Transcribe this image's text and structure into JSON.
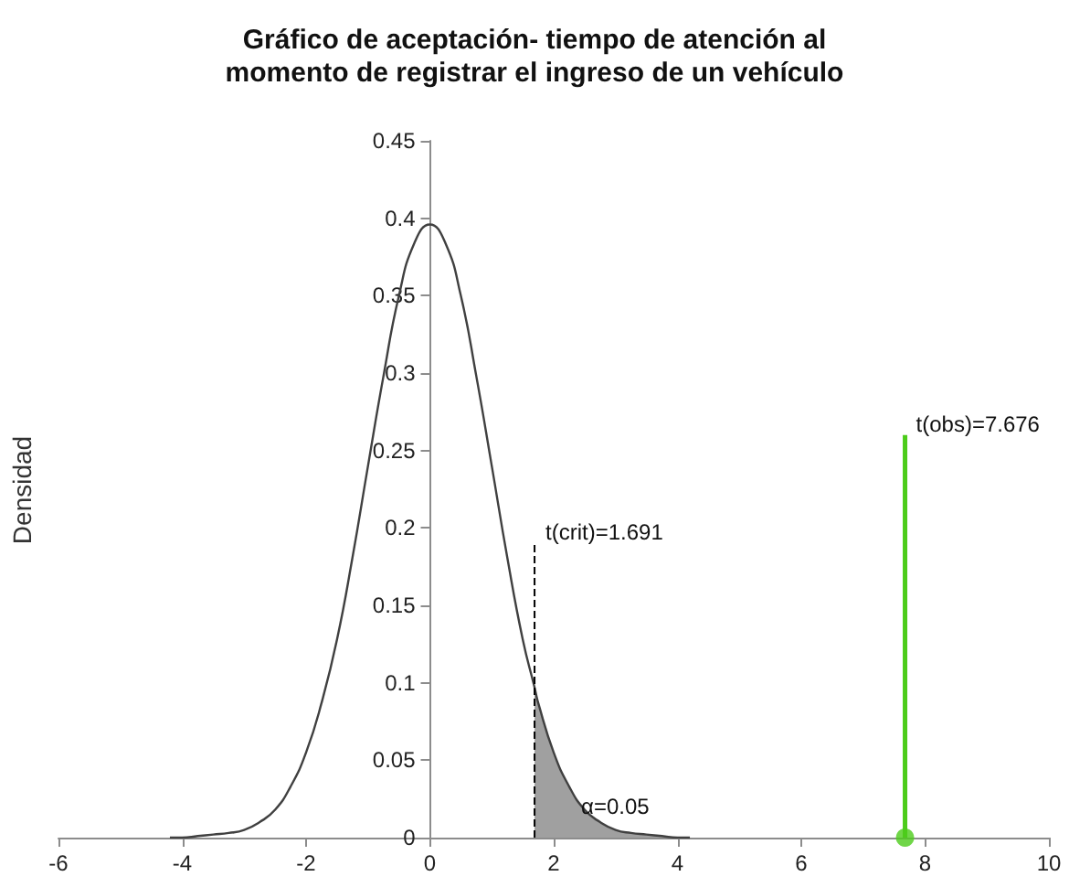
{
  "chart_data": {
    "type": "line",
    "title": "Gráfico de aceptación- tiempo de atención al\nmomento de registrar el ingreso de un vehículo",
    "ylabel": "Densidad",
    "xlim": [
      -6,
      10
    ],
    "xticks": [
      -6,
      -4,
      -2,
      0,
      2,
      4,
      6,
      8,
      10
    ],
    "ylim": [
      0,
      0.45
    ],
    "yticks": [
      0,
      0.05,
      0.1,
      0.15,
      0.2,
      0.25,
      0.3,
      0.35,
      0.4,
      0.45
    ],
    "grid": false,
    "marker": "none",
    "series": [
      {
        "type": "area",
        "color": "#a0a0a0",
        "x": [
          1.691,
          2,
          2.25,
          2.5,
          2.75,
          3,
          3.25,
          3.5,
          3.75,
          4,
          4.2
        ],
        "values": [
          0.097,
          0.055,
          0.033,
          0.018,
          0.01,
          0.005,
          0.003,
          0.002,
          0.001,
          0,
          0
        ]
      },
      {
        "color": "#404040",
        "x": [
          -4.2,
          -4,
          -3.75,
          -3.5,
          -3.25,
          -3,
          -2.75,
          -2.5,
          -2.25,
          -2,
          -1.75,
          -1.5,
          -1.25,
          -1,
          -0.75,
          -0.5,
          -0.25,
          0,
          0.25,
          0.5,
          0.75,
          1,
          1.25,
          1.5,
          1.691,
          1.75,
          2,
          2.25,
          2.5,
          2.75,
          3,
          3.25,
          3.5,
          3.75,
          4,
          4.2
        ],
        "values": [
          0,
          0,
          0.001,
          0.002,
          0.003,
          0.005,
          0.01,
          0.018,
          0.033,
          0.055,
          0.087,
          0.128,
          0.181,
          0.24,
          0.298,
          0.35,
          0.384,
          0.396,
          0.384,
          0.35,
          0.298,
          0.24,
          0.181,
          0.128,
          0.097,
          0.087,
          0.055,
          0.033,
          0.018,
          0.01,
          0.005,
          0.003,
          0.002,
          0.001,
          0,
          0
        ]
      },
      {
        "type": "line",
        "color": "#000000",
        "line_style": "dashed",
        "x": [
          1.691,
          1.691
        ],
        "values": [
          0,
          0.19
        ]
      },
      {
        "type": "line",
        "color": "#4ccc1a",
        "x": [
          7.676,
          7.676
        ],
        "values": [
          0,
          0.26
        ]
      },
      {
        "type": "scatter",
        "color": "#4ccc1a",
        "marker": "circle",
        "x": [
          7.676
        ],
        "values": [
          0
        ]
      }
    ],
    "annotations": [
      {
        "text": "t(crit)=1.691",
        "x": 1.691,
        "y": 0.19
      },
      {
        "text": "t(obs)=7.676",
        "x": 7.676,
        "y": 0.26
      },
      "α=0.05"
    ]
  }
}
